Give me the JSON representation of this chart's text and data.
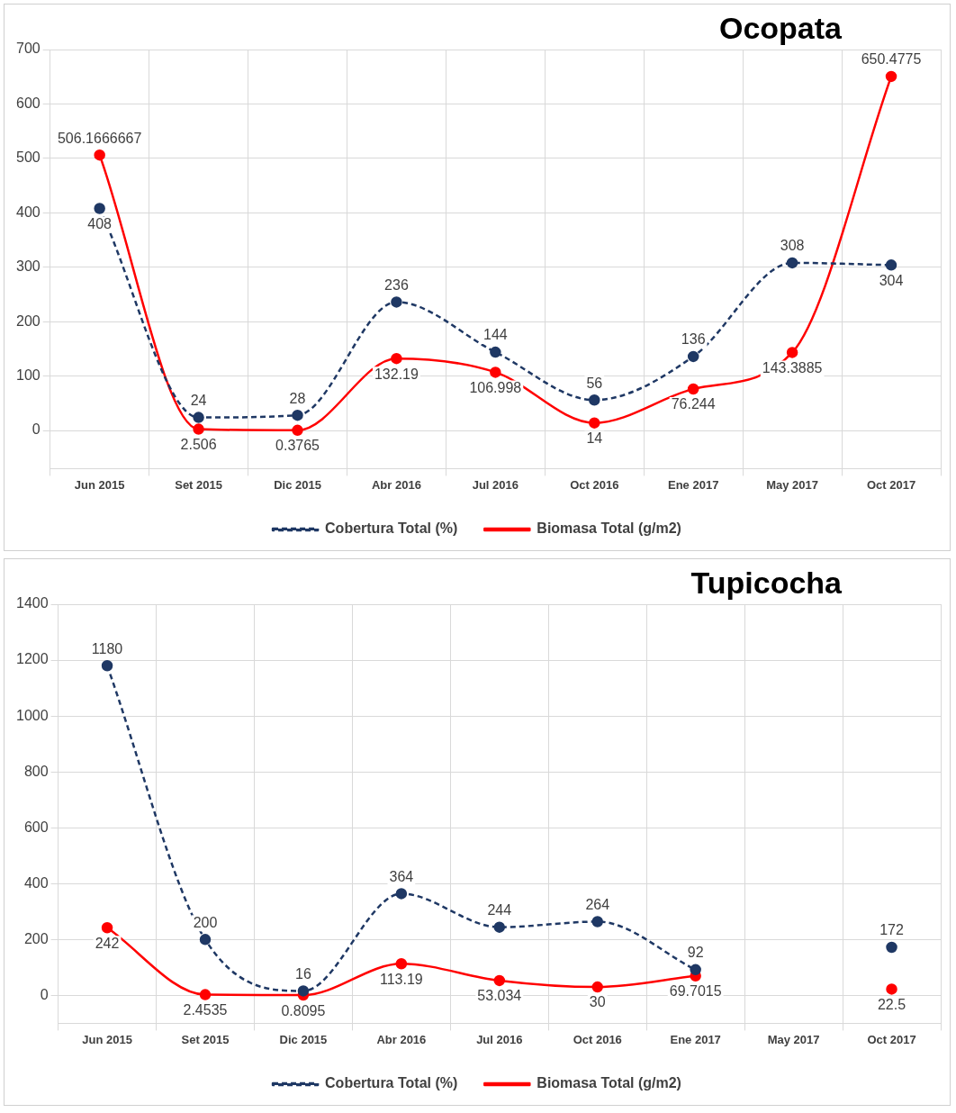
{
  "chart_data": [
    {
      "type": "line",
      "title": "Ocopata",
      "categories": [
        "Jun 2015",
        "Set 2015",
        "Dic 2015",
        "Abr 2016",
        "Jul 2016",
        "Oct 2016",
        "Ene 2017",
        "May 2017",
        "Oct 2017"
      ],
      "series": [
        {
          "name": "Cobertura Total (%)",
          "color": "#1f3864",
          "line_style": "dashed",
          "values": [
            408,
            24,
            28,
            236,
            144,
            56,
            136,
            308,
            304
          ]
        },
        {
          "name": "Biomasa Total (g/m2)",
          "color": "#ff0000",
          "line_style": "solid",
          "values": [
            506.1666667,
            2.506,
            0.3765,
            132.19,
            106.998,
            14,
            76.244,
            143.3885,
            650.4775
          ]
        }
      ],
      "ylim": [
        -70,
        700
      ],
      "yticks": [
        0,
        100,
        200,
        300,
        400,
        500,
        600,
        700
      ],
      "grid": true,
      "legend": "bottom",
      "marker": "circle",
      "data_labels": true
    },
    {
      "type": "line",
      "title": "Tupicocha",
      "categories": [
        "Jun 2015",
        "Set 2015",
        "Dic 2015",
        "Abr 2016",
        "Jul 2016",
        "Oct 2016",
        "Ene 2017",
        "May 2017",
        "Oct 2017"
      ],
      "series": [
        {
          "name": "Cobertura Total (%)",
          "color": "#1f3864",
          "line_style": "dashed",
          "values": [
            1180,
            200,
            16,
            364,
            244,
            264,
            92,
            null,
            172
          ]
        },
        {
          "name": "Biomasa Total (g/m2)",
          "color": "#ff0000",
          "line_style": "solid",
          "values": [
            242,
            2.4535,
            0.8095,
            113.19,
            53.034,
            30,
            69.7015,
            null,
            22.5
          ]
        }
      ],
      "ylim": [
        -100,
        1400
      ],
      "yticks": [
        0,
        200,
        400,
        600,
        800,
        1000,
        1200,
        1400
      ],
      "grid": true,
      "legend": "bottom",
      "marker": "circle",
      "data_labels": true
    }
  ]
}
